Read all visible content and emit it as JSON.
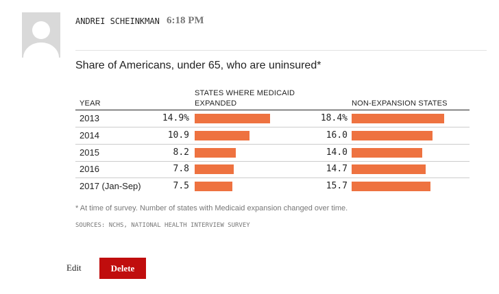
{
  "header": {
    "author": "ANDREI SCHEINKMAN",
    "time": "6:18 PM"
  },
  "chart_data": {
    "type": "bar",
    "title": "Share of Americans, under 65, who are uninsured*",
    "category_header": "YEAR",
    "categories": [
      "2013",
      "2014",
      "2015",
      "2016",
      "2017 (Jan-Sep)"
    ],
    "xlim": [
      0,
      20
    ],
    "series": [
      {
        "name": "STATES WHERE MEDICAID EXPANDED",
        "color": "#ee7240",
        "values": [
          14.9,
          10.9,
          8.2,
          7.8,
          7.5
        ],
        "value_labels": [
          "14.9%",
          "10.9",
          "8.2",
          "7.8",
          "7.5"
        ]
      },
      {
        "name": "NON-EXPANSION STATES",
        "color": "#ee7240",
        "values": [
          18.4,
          16.0,
          14.0,
          14.7,
          15.7
        ],
        "value_labels": [
          "18.4%",
          "16.0",
          "14.0",
          "14.7",
          "15.7"
        ]
      }
    ],
    "footnote": "* At time of survey. Number of states with Medicaid expansion changed over time.",
    "source": "SOURCES: NCHS, NATIONAL HEALTH INTERVIEW SURVEY"
  },
  "actions": {
    "edit": "Edit",
    "delete": "Delete"
  }
}
